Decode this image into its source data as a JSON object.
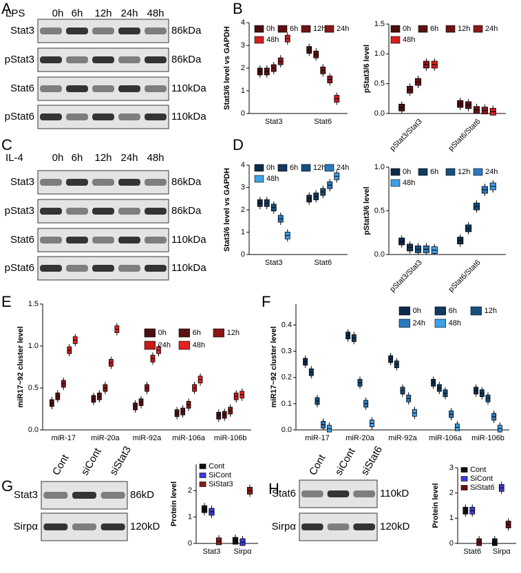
{
  "panel_letters": [
    "A",
    "B",
    "C",
    "D",
    "E",
    "F",
    "G",
    "H"
  ],
  "blots": [
    {
      "condition": "LPS",
      "lanes": [
        "0h",
        "6h",
        "12h",
        "24h",
        "48h"
      ],
      "rows": [
        {
          "protein": "Stat3",
          "size": "86kDa"
        },
        {
          "protein": "pStat3",
          "size": "86kDa"
        },
        {
          "protein": "Stat6",
          "size": "110kDa"
        },
        {
          "protein": "pStat6",
          "size": "110kDa"
        }
      ]
    },
    {
      "condition": "IL-4",
      "lanes": [
        "0h",
        "6h",
        "12h",
        "24h",
        "48h"
      ],
      "rows": [
        {
          "protein": "Stat3",
          "size": "86kDa"
        },
        {
          "protein": "pStat3",
          "size": "86kDa"
        },
        {
          "protein": "Stat6",
          "size": "110kDa"
        },
        {
          "protein": "pStat6",
          "size": "110kDa"
        }
      ]
    },
    {
      "lanes": [
        "Cont",
        "siCont",
        "siStat3"
      ],
      "rows": [
        {
          "protein": "Stat3",
          "size": "86kD"
        },
        {
          "protein": "Sirpα",
          "size": "120kD"
        }
      ]
    },
    {
      "lanes": [
        "Cont",
        "siCont",
        "siStat6"
      ],
      "rows": [
        {
          "protein": "Stat6",
          "size": "110kD"
        },
        {
          "protein": "Sirpα",
          "size": "120kD"
        }
      ]
    }
  ],
  "chart_data": [
    {
      "type": "box",
      "y_label": "Stat3/6 level vs GAPDH",
      "categories": [
        "Stat3",
        "Stat6"
      ],
      "ylim": [
        0,
        4
      ],
      "yticks": [
        0,
        1,
        2,
        3,
        4
      ],
      "series": [
        {
          "name": "0h",
          "color": "#4a0d0d",
          "values": [
            1.85,
            2.8
          ]
        },
        {
          "name": "6h",
          "color": "#5e1111",
          "values": [
            1.85,
            2.6
          ]
        },
        {
          "name": "12h",
          "color": "#6e1414",
          "values": [
            2.0,
            1.9
          ]
        },
        {
          "name": "24h",
          "color": "#8b1a1a",
          "values": [
            2.3,
            1.5
          ]
        },
        {
          "name": "48h",
          "color": "#d42020",
          "values": [
            3.3,
            0.65
          ]
        }
      ]
    },
    {
      "type": "box",
      "y_label": "pStat3/6 level",
      "categories": [
        "pStat3/Stat3",
        "pStat6/Stat6"
      ],
      "ylim": [
        0,
        1.5
      ],
      "yticks": [
        {
          "value": 0,
          "label": "0.0"
        },
        0.5,
        {
          "value": 1,
          "label": "1.0"
        },
        1.5
      ],
      "series": [
        {
          "name": "0h",
          "color": "#4a0d0d",
          "values": [
            0.1,
            0.16
          ]
        },
        {
          "name": "6h",
          "color": "#5e1111",
          "values": [
            0.4,
            0.14
          ]
        },
        {
          "name": "12h",
          "color": "#6e1414",
          "values": [
            0.53,
            0.06
          ]
        },
        {
          "name": "24h",
          "color": "#8b1a1a",
          "values": [
            0.82,
            0.05
          ]
        },
        {
          "name": "48h",
          "color": "#d42020",
          "values": [
            0.82,
            0.03
          ]
        }
      ]
    },
    {
      "type": "box",
      "y_label": "Stat3/6 level vs GAPDH",
      "categories": [
        "Stat3",
        "Stat6"
      ],
      "ylim": [
        0,
        4
      ],
      "yticks": [
        0,
        1,
        2,
        3,
        4
      ],
      "series": [
        {
          "name": "0h",
          "color": "#0d2a4a",
          "values": [
            2.3,
            2.5
          ]
        },
        {
          "name": "6h",
          "color": "#12395e",
          "values": [
            2.3,
            2.6
          ]
        },
        {
          "name": "12h",
          "color": "#17507e",
          "values": [
            2.1,
            2.8
          ]
        },
        {
          "name": "24h",
          "color": "#2a7ac0",
          "values": [
            1.6,
            3.1
          ]
        },
        {
          "name": "48h",
          "color": "#3fa0e8",
          "values": [
            0.85,
            3.5
          ]
        }
      ]
    },
    {
      "type": "box",
      "y_label": "pStat3/6 level",
      "categories": [
        "pStat3/Stat3",
        "pStat6/Stat6"
      ],
      "ylim": [
        0,
        1.0
      ],
      "yticks": [
        {
          "value": 0,
          "label": "0.0"
        },
        0.5,
        {
          "value": 1,
          "label": "1.0"
        }
      ],
      "series": [
        {
          "name": "0h",
          "color": "#0d2a4a",
          "values": [
            0.15,
            0.16
          ]
        },
        {
          "name": "6h",
          "color": "#12395e",
          "values": [
            0.08,
            0.3
          ]
        },
        {
          "name": "12h",
          "color": "#17507e",
          "values": [
            0.06,
            0.55
          ]
        },
        {
          "name": "24h",
          "color": "#2a7ac0",
          "values": [
            0.06,
            0.74
          ]
        },
        {
          "name": "48h",
          "color": "#3fa0e8",
          "values": [
            0.05,
            0.78
          ]
        }
      ]
    },
    {
      "type": "box",
      "y_label": "miR17~92 cluster level",
      "categories": [
        "miR-17",
        "miR-20a",
        "miR-92a",
        "miR-106a",
        "miR-106b"
      ],
      "ylim": [
        0,
        1.5
      ],
      "yticks": [
        {
          "value": 0,
          "label": "0.0"
        },
        0.5,
        {
          "value": 1,
          "label": "1.0"
        },
        1.5
      ],
      "series": [
        {
          "name": "0h",
          "color": "#4a1010",
          "values": [
            0.32,
            0.37,
            0.28,
            0.2,
            0.17
          ]
        },
        {
          "name": "6h",
          "color": "#5a1212",
          "values": [
            0.4,
            0.4,
            0.33,
            0.22,
            0.18
          ]
        },
        {
          "name": "12h",
          "color": "#8b1515",
          "values": [
            0.55,
            0.5,
            0.5,
            0.3,
            0.23
          ]
        },
        {
          "name": "24h",
          "color": "#c81818",
          "values": [
            0.95,
            0.8,
            0.85,
            0.5,
            0.4
          ]
        },
        {
          "name": "48h",
          "color": "#e82020",
          "values": [
            1.07,
            1.2,
            0.95,
            0.6,
            0.42
          ]
        }
      ]
    },
    {
      "type": "box",
      "y_label": "miR17~92 cluster level",
      "categories": [
        "miR-17",
        "miR-20a",
        "miR-92a",
        "miR-106a",
        "miR-106b"
      ],
      "ylim": [
        0,
        0.48
      ],
      "yticks": [
        {
          "value": 0,
          "label": "0.0"
        },
        0.1,
        0.2,
        0.3,
        0.4
      ],
      "series": [
        {
          "name": "0h",
          "color": "#0d2a4a",
          "values": [
            0.26,
            0.36,
            0.27,
            0.18,
            0.15
          ]
        },
        {
          "name": "6h",
          "color": "#12395e",
          "values": [
            0.22,
            0.35,
            0.25,
            0.16,
            0.14
          ]
        },
        {
          "name": "12h",
          "color": "#17507e",
          "values": [
            0.11,
            0.18,
            0.15,
            0.14,
            0.12
          ]
        },
        {
          "name": "24h",
          "color": "#2a7ac0",
          "values": [
            0.02,
            0.1,
            0.12,
            0.06,
            0.05
          ]
        },
        {
          "name": "48h",
          "color": "#3fa0e8",
          "values": [
            0.005,
            0.025,
            0.065,
            0.01,
            0.005
          ]
        }
      ]
    },
    {
      "type": "box",
      "y_label": "Protein level",
      "categories": [
        "Stat3",
        "Sirpα"
      ],
      "ylim": [
        0,
        3
      ],
      "yticks": [
        0,
        1,
        2
      ],
      "series": [
        {
          "name": "Cont",
          "color": "#111111",
          "values": [
            1.3,
            0.1
          ]
        },
        {
          "name": "SiCont",
          "color": "#3a3ae0",
          "values": [
            1.2,
            0.05
          ]
        },
        {
          "name": "SiStat3",
          "color": "#8b1a1a",
          "values": [
            0.08,
            2.0
          ]
        }
      ]
    },
    {
      "type": "box",
      "y_label": "Protein level",
      "categories": [
        "Stat6",
        "Sirpα"
      ],
      "ylim": [
        0,
        3
      ],
      "yticks": [
        0,
        1,
        2,
        3
      ],
      "series": [
        {
          "name": "Cont",
          "color": "#111111",
          "values": [
            1.3,
            0.05
          ]
        },
        {
          "name": "SiCont",
          "color": "#3a3ae0",
          "values": [
            1.3,
            2.2
          ]
        },
        {
          "name": "SiStat6",
          "color": "#6b0f0f",
          "values": [
            0.05,
            0.75
          ]
        }
      ]
    }
  ]
}
